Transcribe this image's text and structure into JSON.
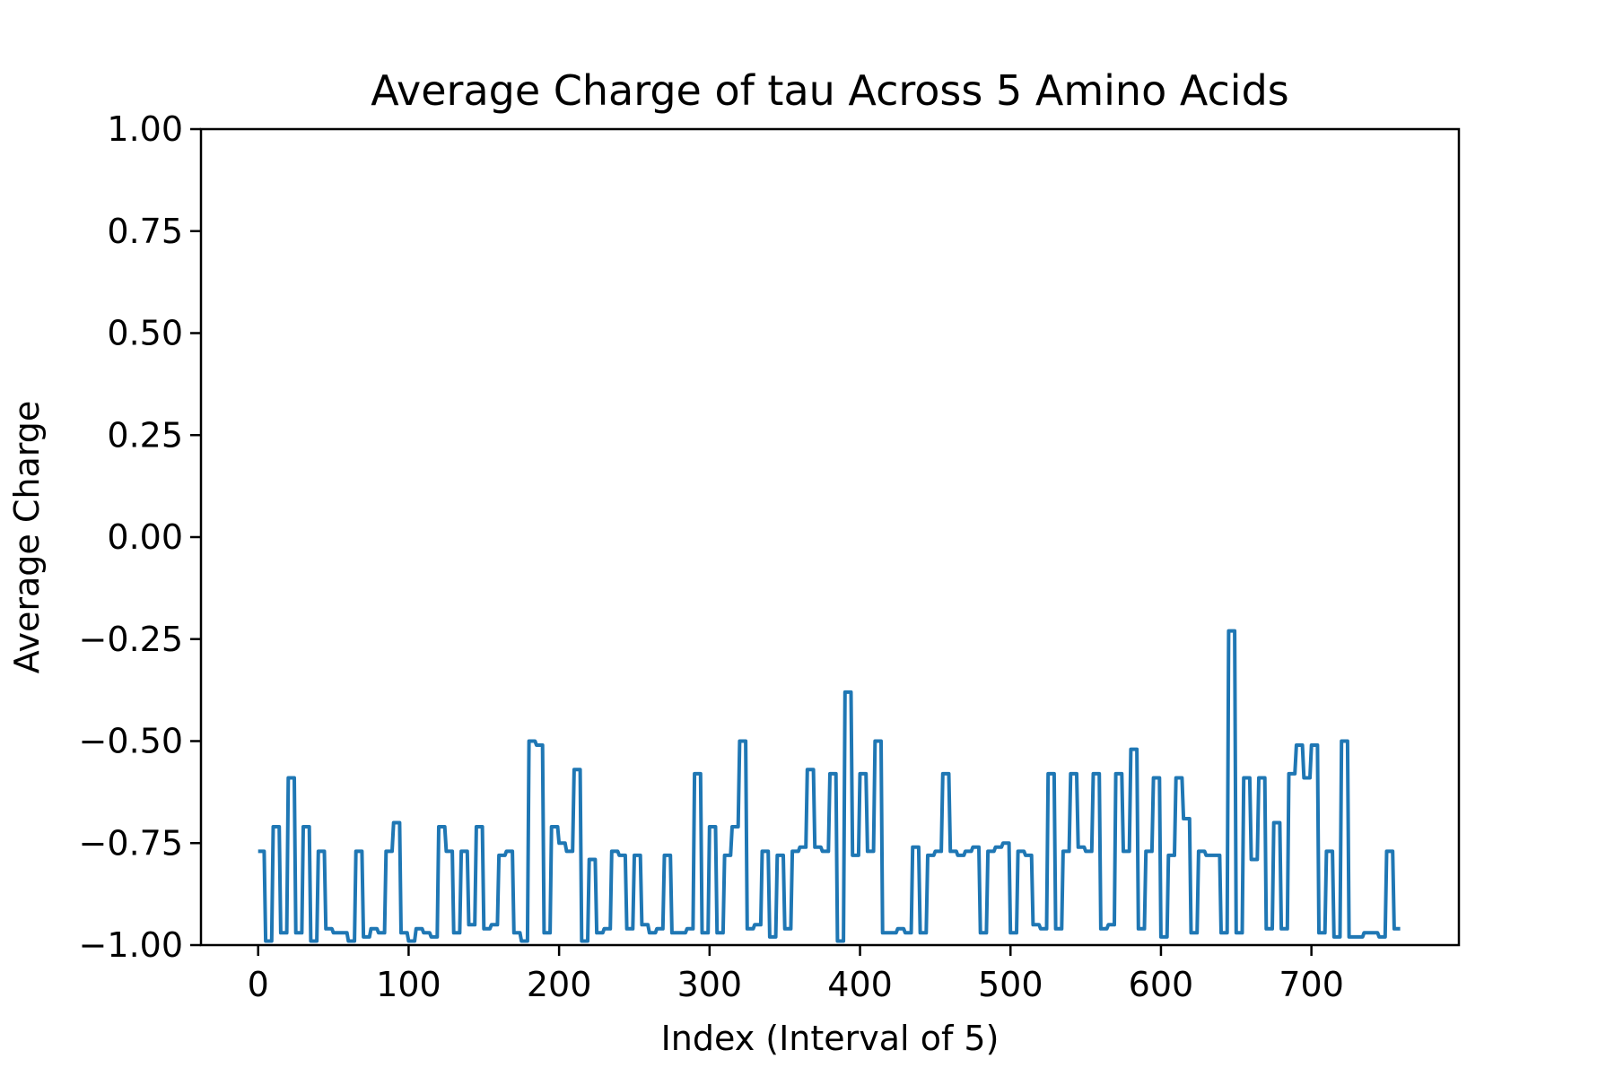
{
  "chart_data": {
    "type": "line",
    "title": "Average Charge of tau Across 5 Amino Acids",
    "xlabel": "Index (Interval of 5)",
    "ylabel": "Average Charge",
    "xlim": [
      -38,
      798
    ],
    "ylim": [
      -1.0,
      1.0
    ],
    "x_ticks": [
      0,
      100,
      200,
      300,
      400,
      500,
      600,
      700
    ],
    "x_tick_labels": [
      "0",
      "100",
      "200",
      "300",
      "400",
      "500",
      "600",
      "700"
    ],
    "y_ticks": [
      1.0,
      0.75,
      0.5,
      0.25,
      0.0,
      -0.25,
      -0.5,
      -0.75,
      -1.0
    ],
    "y_tick_labels": [
      "1.00",
      "0.75",
      "0.50",
      "0.25",
      "0.00",
      "−0.25",
      "−0.50",
      "−0.75",
      "−1.00"
    ],
    "grid": false,
    "series": [
      {
        "color": "#1f77b4",
        "x": [
          0,
          4,
          5,
          9,
          10,
          14,
          15,
          19,
          20,
          24,
          25,
          29,
          30,
          34,
          35,
          39,
          40,
          44,
          45,
          49,
          50,
          54,
          55,
          59,
          60,
          64,
          65,
          69,
          70,
          74,
          75,
          79,
          80,
          84,
          85,
          89,
          90,
          94,
          95,
          99,
          100,
          104,
          105,
          109,
          110,
          114,
          115,
          119,
          120,
          124,
          125,
          129,
          130,
          134,
          135,
          139,
          140,
          144,
          145,
          149,
          150,
          154,
          155,
          159,
          160,
          164,
          165,
          169,
          170,
          174,
          175,
          179,
          180,
          184,
          185,
          189,
          190,
          194,
          195,
          199,
          200,
          204,
          205,
          209,
          210,
          214,
          215,
          219,
          220,
          224,
          225,
          229,
          230,
          234,
          235,
          239,
          240,
          244,
          245,
          249,
          250,
          254,
          255,
          259,
          260,
          264,
          265,
          269,
          270,
          274,
          275,
          279,
          280,
          284,
          285,
          289,
          290,
          294,
          295,
          299,
          300,
          304,
          305,
          309,
          310,
          314,
          315,
          319,
          320,
          324,
          325,
          329,
          330,
          334,
          335,
          339,
          340,
          344,
          345,
          349,
          350,
          354,
          355,
          359,
          360,
          364,
          365,
          369,
          370,
          374,
          375,
          379,
          380,
          384,
          385,
          389,
          390,
          394,
          395,
          399,
          400,
          404,
          405,
          409,
          410,
          414,
          415,
          419,
          420,
          424,
          425,
          429,
          430,
          434,
          435,
          439,
          440,
          444,
          445,
          449,
          450,
          454,
          455,
          459,
          460,
          464,
          465,
          469,
          470,
          474,
          475,
          479,
          480,
          484,
          485,
          489,
          490,
          494,
          495,
          499,
          500,
          504,
          505,
          509,
          510,
          514,
          515,
          519,
          520,
          524,
          525,
          529,
          530,
          534,
          535,
          539,
          540,
          544,
          545,
          549,
          550,
          554,
          555,
          559,
          560,
          564,
          565,
          569,
          570,
          574,
          575,
          579,
          580,
          584,
          585,
          589,
          590,
          594,
          595,
          599,
          600,
          604,
          605,
          609,
          610,
          614,
          615,
          619,
          620,
          624,
          625,
          629,
          630,
          634,
          635,
          639,
          640,
          644,
          645,
          649,
          650,
          654,
          655,
          659,
          660,
          664,
          665,
          669,
          670,
          674,
          675,
          679,
          680,
          684,
          685,
          689,
          690,
          694,
          695,
          699,
          700,
          704,
          705,
          709,
          710,
          714,
          715,
          719,
          720,
          724,
          725,
          729,
          730,
          734,
          735,
          739,
          740,
          744,
          745,
          749,
          750,
          754,
          755,
          759
        ],
        "y": [
          -0.77,
          -0.77,
          -0.99,
          -0.99,
          -0.71,
          -0.71,
          -0.97,
          -0.97,
          -0.59,
          -0.59,
          -0.97,
          -0.97,
          -0.71,
          -0.71,
          -0.99,
          -0.99,
          -0.77,
          -0.77,
          -0.96,
          -0.96,
          -0.97,
          -0.97,
          -0.97,
          -0.97,
          -0.99,
          -0.99,
          -0.77,
          -0.77,
          -0.98,
          -0.98,
          -0.96,
          -0.96,
          -0.97,
          -0.97,
          -0.77,
          -0.77,
          -0.7,
          -0.7,
          -0.97,
          -0.97,
          -0.99,
          -0.99,
          -0.96,
          -0.96,
          -0.97,
          -0.97,
          -0.98,
          -0.98,
          -0.71,
          -0.71,
          -0.77,
          -0.77,
          -0.97,
          -0.97,
          -0.77,
          -0.77,
          -0.95,
          -0.95,
          -0.71,
          -0.71,
          -0.96,
          -0.96,
          -0.95,
          -0.95,
          -0.78,
          -0.78,
          -0.77,
          -0.77,
          -0.97,
          -0.97,
          -0.99,
          -0.99,
          -0.5,
          -0.5,
          -0.51,
          -0.51,
          -0.97,
          -0.97,
          -0.71,
          -0.71,
          -0.75,
          -0.75,
          -0.77,
          -0.77,
          -0.57,
          -0.57,
          -0.99,
          -0.99,
          -0.79,
          -0.79,
          -0.97,
          -0.97,
          -0.96,
          -0.96,
          -0.77,
          -0.77,
          -0.78,
          -0.78,
          -0.96,
          -0.96,
          -0.78,
          -0.78,
          -0.95,
          -0.95,
          -0.97,
          -0.97,
          -0.96,
          -0.96,
          -0.78,
          -0.78,
          -0.97,
          -0.97,
          -0.97,
          -0.97,
          -0.96,
          -0.96,
          -0.58,
          -0.58,
          -0.97,
          -0.97,
          -0.71,
          -0.71,
          -0.97,
          -0.97,
          -0.78,
          -0.78,
          -0.71,
          -0.71,
          -0.5,
          -0.5,
          -0.96,
          -0.96,
          -0.95,
          -0.95,
          -0.77,
          -0.77,
          -0.98,
          -0.98,
          -0.78,
          -0.78,
          -0.96,
          -0.96,
          -0.77,
          -0.77,
          -0.76,
          -0.76,
          -0.57,
          -0.57,
          -0.76,
          -0.76,
          -0.77,
          -0.77,
          -0.58,
          -0.58,
          -0.99,
          -0.99,
          -0.38,
          -0.38,
          -0.78,
          -0.78,
          -0.58,
          -0.58,
          -0.77,
          -0.77,
          -0.5,
          -0.5,
          -0.97,
          -0.97,
          -0.97,
          -0.97,
          -0.96,
          -0.96,
          -0.97,
          -0.97,
          -0.76,
          -0.76,
          -0.97,
          -0.97,
          -0.78,
          -0.78,
          -0.77,
          -0.77,
          -0.58,
          -0.58,
          -0.77,
          -0.77,
          -0.78,
          -0.78,
          -0.77,
          -0.77,
          -0.76,
          -0.76,
          -0.97,
          -0.97,
          -0.77,
          -0.77,
          -0.76,
          -0.76,
          -0.75,
          -0.75,
          -0.97,
          -0.97,
          -0.77,
          -0.77,
          -0.78,
          -0.78,
          -0.95,
          -0.95,
          -0.96,
          -0.96,
          -0.58,
          -0.58,
          -0.96,
          -0.96,
          -0.77,
          -0.77,
          -0.58,
          -0.58,
          -0.76,
          -0.76,
          -0.77,
          -0.77,
          -0.58,
          -0.58,
          -0.96,
          -0.96,
          -0.95,
          -0.95,
          -0.58,
          -0.58,
          -0.77,
          -0.77,
          -0.52,
          -0.52,
          -0.96,
          -0.96,
          -0.77,
          -0.77,
          -0.59,
          -0.59,
          -0.98,
          -0.98,
          -0.78,
          -0.78,
          -0.59,
          -0.59,
          -0.69,
          -0.69,
          -0.97,
          -0.97,
          -0.77,
          -0.77,
          -0.78,
          -0.78,
          -0.78,
          -0.78,
          -0.97,
          -0.97,
          -0.23,
          -0.23,
          -0.97,
          -0.97,
          -0.59,
          -0.59,
          -0.79,
          -0.79,
          -0.59,
          -0.59,
          -0.96,
          -0.96,
          -0.7,
          -0.7,
          -0.96,
          -0.96,
          -0.58,
          -0.58,
          -0.51,
          -0.51,
          -0.59,
          -0.59,
          -0.51,
          -0.51,
          -0.97,
          -0.97,
          -0.77,
          -0.77,
          -0.98,
          -0.98,
          -0.5,
          -0.5,
          -0.98,
          -0.98,
          -0.98,
          -0.98,
          -0.97,
          -0.97,
          -0.97,
          -0.97,
          -0.98,
          -0.98,
          -0.77,
          -0.77,
          -0.96,
          -0.96
        ]
      }
    ]
  }
}
